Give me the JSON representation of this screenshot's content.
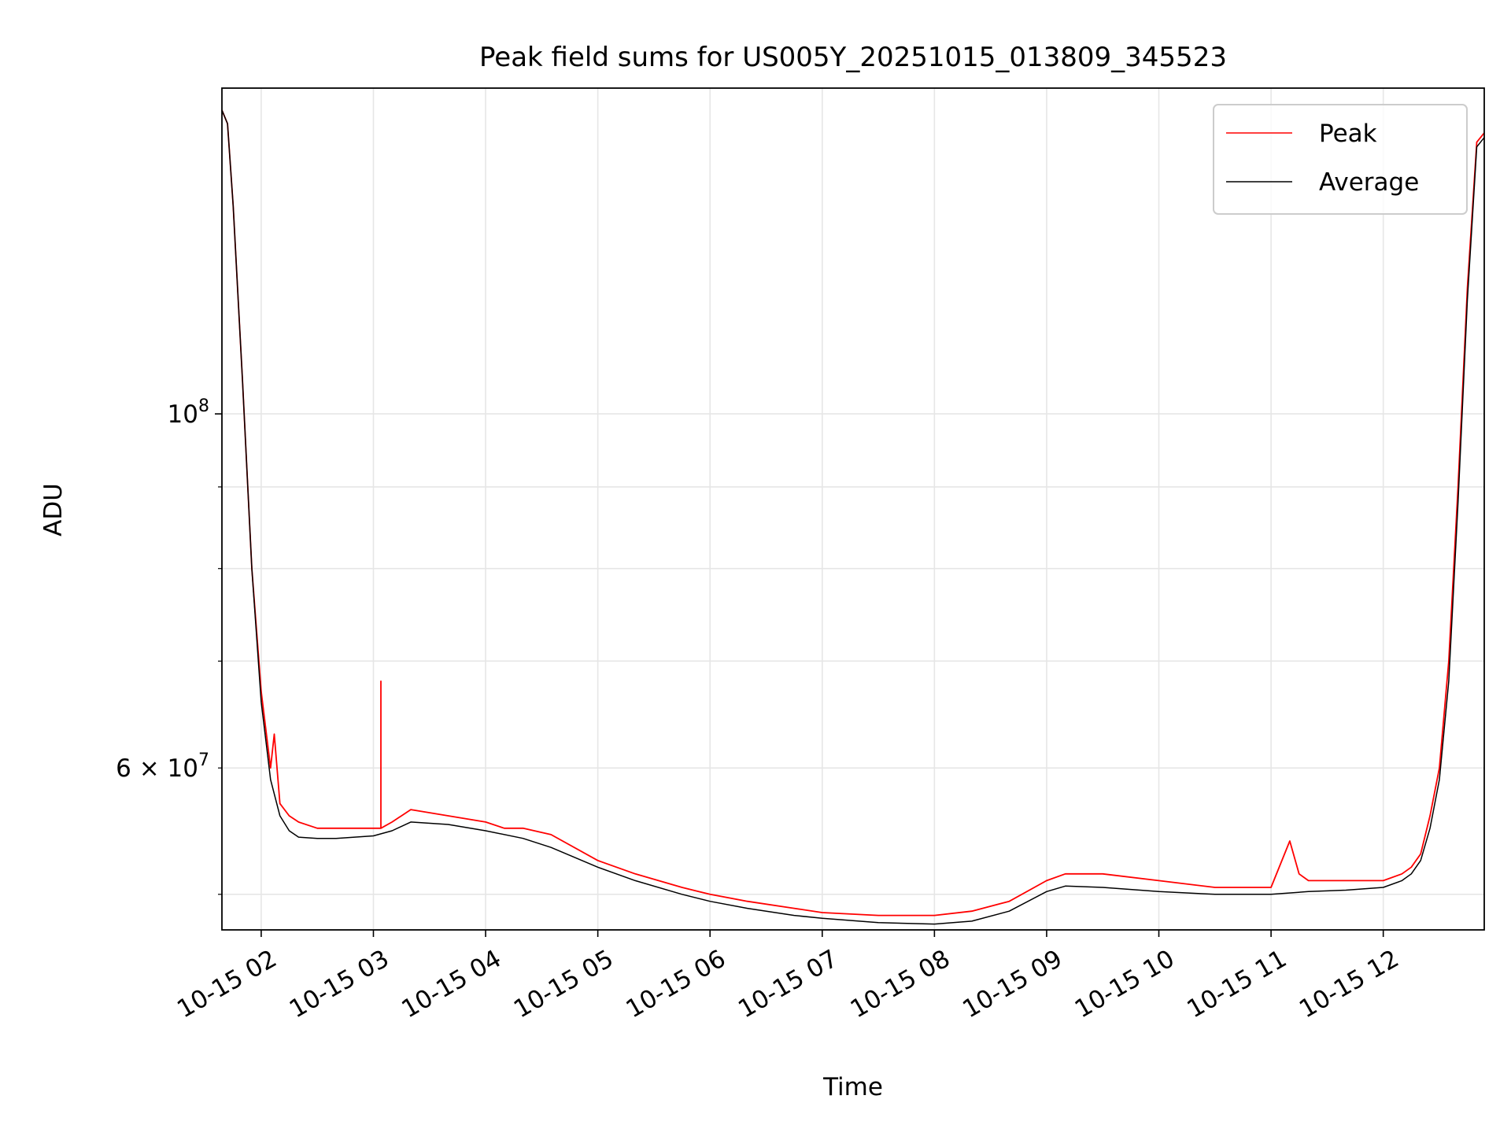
{
  "chart_data": {
    "type": "line",
    "title": "Peak field sums for US005Y_20251015_013809_345523",
    "xlabel": "Time",
    "ylabel": "ADU",
    "x_scale": "time",
    "y_scale": "log",
    "xlim": [
      "2025-10-15 01:39",
      "2025-10-15 12:54"
    ],
    "ylim": [
      47500000,
      160000000
    ],
    "x_ticks": [
      "2025-10-15 02:00",
      "2025-10-15 03:00",
      "2025-10-15 04:00",
      "2025-10-15 05:00",
      "2025-10-15 06:00",
      "2025-10-15 07:00",
      "2025-10-15 08:00",
      "2025-10-15 09:00",
      "2025-10-15 10:00",
      "2025-10-15 11:00",
      "2025-10-15 12:00"
    ],
    "x_tick_labels": [
      "10-15 02",
      "10-15 03",
      "10-15 04",
      "10-15 05",
      "10-15 06",
      "10-15 07",
      "10-15 08",
      "10-15 09",
      "10-15 10",
      "10-15 11",
      "10-15 12"
    ],
    "y_major_ticks": [
      {
        "value": 100000000,
        "base": "10",
        "exp": "8"
      }
    ],
    "y_labeled_minor_ticks": [
      {
        "value": 60000000,
        "mant": "6",
        "times": "×",
        "base": "10",
        "exp": "7"
      }
    ],
    "y_minor_ticks": [
      50000000,
      60000000,
      70000000,
      80000000,
      90000000
    ],
    "grid": true,
    "legend": {
      "position": "upper-right",
      "entries": [
        {
          "label": "Peak",
          "color": "#ff0000"
        },
        {
          "label": "Average",
          "color": "#000000"
        }
      ]
    },
    "series": [
      {
        "name": "Peak",
        "color": "#ff0000",
        "x": [
          "2025-10-15 01:39",
          "2025-10-15 01:42",
          "2025-10-15 01:45",
          "2025-10-15 01:50",
          "2025-10-15 01:55",
          "2025-10-15 02:00",
          "2025-10-15 02:05",
          "2025-10-15 02:07",
          "2025-10-15 02:10",
          "2025-10-15 02:15",
          "2025-10-15 02:20",
          "2025-10-15 02:30",
          "2025-10-15 02:40",
          "2025-10-15 02:50",
          "2025-10-15 03:00",
          "2025-10-15 03:04",
          "2025-10-15 03:04",
          "2025-10-15 03:04",
          "2025-10-15 03:10",
          "2025-10-15 03:20",
          "2025-10-15 03:40",
          "2025-10-15 04:00",
          "2025-10-15 04:10",
          "2025-10-15 04:20",
          "2025-10-15 04:35",
          "2025-10-15 05:00",
          "2025-10-15 05:20",
          "2025-10-15 05:45",
          "2025-10-15 06:00",
          "2025-10-15 06:20",
          "2025-10-15 06:45",
          "2025-10-15 07:00",
          "2025-10-15 07:30",
          "2025-10-15 08:00",
          "2025-10-15 08:20",
          "2025-10-15 08:40",
          "2025-10-15 09:00",
          "2025-10-15 09:10",
          "2025-10-15 09:30",
          "2025-10-15 10:00",
          "2025-10-15 10:30",
          "2025-10-15 11:00",
          "2025-10-15 11:10",
          "2025-10-15 11:15",
          "2025-10-15 11:20",
          "2025-10-15 11:40",
          "2025-10-15 12:00",
          "2025-10-15 12:10",
          "2025-10-15 12:15",
          "2025-10-15 12:20",
          "2025-10-15 12:25",
          "2025-10-15 12:30",
          "2025-10-15 12:35",
          "2025-10-15 12:40",
          "2025-10-15 12:45",
          "2025-10-15 12:50",
          "2025-10-15 12:54"
        ],
        "values": [
          155000000,
          152000000,
          135000000,
          105000000,
          80000000,
          67000000,
          60000000,
          63000000,
          57000000,
          56000000,
          55500000,
          55000000,
          55000000,
          55000000,
          55000000,
          55000000,
          68000000,
          55000000,
          55500000,
          56500000,
          56000000,
          55500000,
          55000000,
          55000000,
          54500000,
          52500000,
          51500000,
          50500000,
          50000000,
          49500000,
          49000000,
          48700000,
          48500000,
          48500000,
          48800000,
          49500000,
          51000000,
          51500000,
          51500000,
          51000000,
          50500000,
          50500000,
          54000000,
          51500000,
          51000000,
          51000000,
          51000000,
          51500000,
          52000000,
          53000000,
          56000000,
          60000000,
          70000000,
          90000000,
          120000000,
          148000000,
          150000000
        ]
      },
      {
        "name": "Average",
        "color": "#000000",
        "x": [
          "2025-10-15 01:39",
          "2025-10-15 01:42",
          "2025-10-15 01:45",
          "2025-10-15 01:50",
          "2025-10-15 01:55",
          "2025-10-15 02:00",
          "2025-10-15 02:05",
          "2025-10-15 02:10",
          "2025-10-15 02:15",
          "2025-10-15 02:20",
          "2025-10-15 02:30",
          "2025-10-15 02:40",
          "2025-10-15 02:50",
          "2025-10-15 03:00",
          "2025-10-15 03:10",
          "2025-10-15 03:20",
          "2025-10-15 03:40",
          "2025-10-15 04:00",
          "2025-10-15 04:20",
          "2025-10-15 04:35",
          "2025-10-15 05:00",
          "2025-10-15 05:20",
          "2025-10-15 05:45",
          "2025-10-15 06:00",
          "2025-10-15 06:20",
          "2025-10-15 06:45",
          "2025-10-15 07:00",
          "2025-10-15 07:30",
          "2025-10-15 08:00",
          "2025-10-15 08:20",
          "2025-10-15 08:40",
          "2025-10-15 09:00",
          "2025-10-15 09:10",
          "2025-10-15 09:30",
          "2025-10-15 10:00",
          "2025-10-15 10:30",
          "2025-10-15 11:00",
          "2025-10-15 11:20",
          "2025-10-15 11:40",
          "2025-10-15 12:00",
          "2025-10-15 12:10",
          "2025-10-15 12:15",
          "2025-10-15 12:20",
          "2025-10-15 12:25",
          "2025-10-15 12:30",
          "2025-10-15 12:35",
          "2025-10-15 12:40",
          "2025-10-15 12:45",
          "2025-10-15 12:50",
          "2025-10-15 12:54"
        ],
        "values": [
          155000000,
          152000000,
          135000000,
          105000000,
          80000000,
          66000000,
          59000000,
          56000000,
          54800000,
          54300000,
          54200000,
          54200000,
          54300000,
          54400000,
          54800000,
          55500000,
          55300000,
          54800000,
          54200000,
          53500000,
          52000000,
          51000000,
          50000000,
          49500000,
          49000000,
          48500000,
          48300000,
          48000000,
          47900000,
          48100000,
          48800000,
          50200000,
          50600000,
          50500000,
          50200000,
          50000000,
          50000000,
          50200000,
          50300000,
          50500000,
          51000000,
          51500000,
          52500000,
          55000000,
          59000000,
          68000000,
          88000000,
          118000000,
          147000000,
          149000000
        ]
      }
    ]
  }
}
